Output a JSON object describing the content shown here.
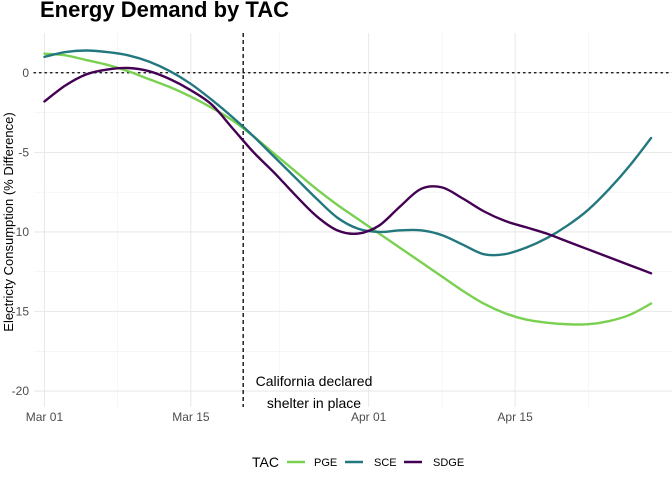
{
  "chart_data": {
    "type": "line",
    "title": "Energy Demand by TAC",
    "xlabel": "",
    "ylabel": "Electricty Consumption (% Difference)",
    "x_ticks": [
      {
        "day": 1,
        "label": "Mar 01"
      },
      {
        "day": 15,
        "label": "Mar 15"
      },
      {
        "day": 32,
        "label": "Apr 01"
      },
      {
        "day": 46,
        "label": "Apr 15"
      }
    ],
    "xlim": [
      "2020-02-28",
      "2020-04-29"
    ],
    "ylim": [
      -21,
      2.5
    ],
    "y_ticks": [
      0,
      -5,
      -10,
      -15,
      -20
    ],
    "grid": true,
    "reference_lines": {
      "horizontal_y": 0,
      "vertical_x": "2020-03-19"
    },
    "annotation": {
      "lines": [
        "California declared",
        "shelter in place"
      ],
      "x": "2020-03-19"
    },
    "legend": {
      "title": "TAC",
      "position": "bottom"
    },
    "series": [
      {
        "name": "PGE",
        "color": "#7AD151",
        "points": [
          [
            1,
            1.2
          ],
          [
            3,
            1.1
          ],
          [
            5,
            0.8
          ],
          [
            7,
            0.5
          ],
          [
            9,
            0.1
          ],
          [
            11,
            -0.4
          ],
          [
            13,
            -0.9
          ],
          [
            15,
            -1.5
          ],
          [
            17,
            -2.2
          ],
          [
            19,
            -3.0
          ],
          [
            21,
            -4.0
          ],
          [
            23,
            -5.1
          ],
          [
            25,
            -6.2
          ],
          [
            27,
            -7.3
          ],
          [
            29,
            -8.3
          ],
          [
            31,
            -9.2
          ],
          [
            33,
            -10.1
          ],
          [
            35,
            -11.0
          ],
          [
            37,
            -11.9
          ],
          [
            39,
            -12.8
          ],
          [
            41,
            -13.7
          ],
          [
            43,
            -14.5
          ],
          [
            45,
            -15.1
          ],
          [
            47,
            -15.5
          ],
          [
            49,
            -15.7
          ],
          [
            51,
            -15.8
          ],
          [
            53,
            -15.8
          ],
          [
            55,
            -15.6
          ],
          [
            57,
            -15.2
          ],
          [
            59,
            -14.5
          ]
        ]
      },
      {
        "name": "SCE",
        "color": "#22787E",
        "points": [
          [
            1,
            1.0
          ],
          [
            3,
            1.3
          ],
          [
            5,
            1.4
          ],
          [
            7,
            1.3
          ],
          [
            9,
            1.1
          ],
          [
            11,
            0.7
          ],
          [
            13,
            0.1
          ],
          [
            15,
            -0.7
          ],
          [
            17,
            -1.7
          ],
          [
            19,
            -2.8
          ],
          [
            21,
            -4.0
          ],
          [
            23,
            -5.3
          ],
          [
            25,
            -6.6
          ],
          [
            27,
            -7.9
          ],
          [
            29,
            -9.1
          ],
          [
            31,
            -9.8
          ],
          [
            33,
            -10.0
          ],
          [
            35,
            -9.9
          ],
          [
            37,
            -9.9
          ],
          [
            39,
            -10.2
          ],
          [
            41,
            -10.8
          ],
          [
            43,
            -11.4
          ],
          [
            45,
            -11.4
          ],
          [
            47,
            -11.0
          ],
          [
            49,
            -10.4
          ],
          [
            51,
            -9.6
          ],
          [
            53,
            -8.6
          ],
          [
            55,
            -7.3
          ],
          [
            57,
            -5.8
          ],
          [
            59,
            -4.1
          ]
        ]
      },
      {
        "name": "SDGE",
        "color": "#440154",
        "points": [
          [
            1,
            -1.8
          ],
          [
            3,
            -0.8
          ],
          [
            5,
            -0.1
          ],
          [
            7,
            0.2
          ],
          [
            9,
            0.3
          ],
          [
            11,
            0.1
          ],
          [
            13,
            -0.4
          ],
          [
            15,
            -1.1
          ],
          [
            17,
            -2.0
          ],
          [
            19,
            -3.5
          ],
          [
            21,
            -5.0
          ],
          [
            23,
            -6.3
          ],
          [
            25,
            -7.7
          ],
          [
            27,
            -9.0
          ],
          [
            29,
            -9.9
          ],
          [
            31,
            -10.1
          ],
          [
            33,
            -9.6
          ],
          [
            35,
            -8.4
          ],
          [
            37,
            -7.3
          ],
          [
            39,
            -7.2
          ],
          [
            41,
            -7.9
          ],
          [
            43,
            -8.7
          ],
          [
            45,
            -9.3
          ],
          [
            47,
            -9.7
          ],
          [
            49,
            -10.1
          ],
          [
            51,
            -10.6
          ],
          [
            53,
            -11.1
          ],
          [
            55,
            -11.6
          ],
          [
            57,
            -12.1
          ],
          [
            59,
            -12.6
          ]
        ]
      }
    ]
  }
}
